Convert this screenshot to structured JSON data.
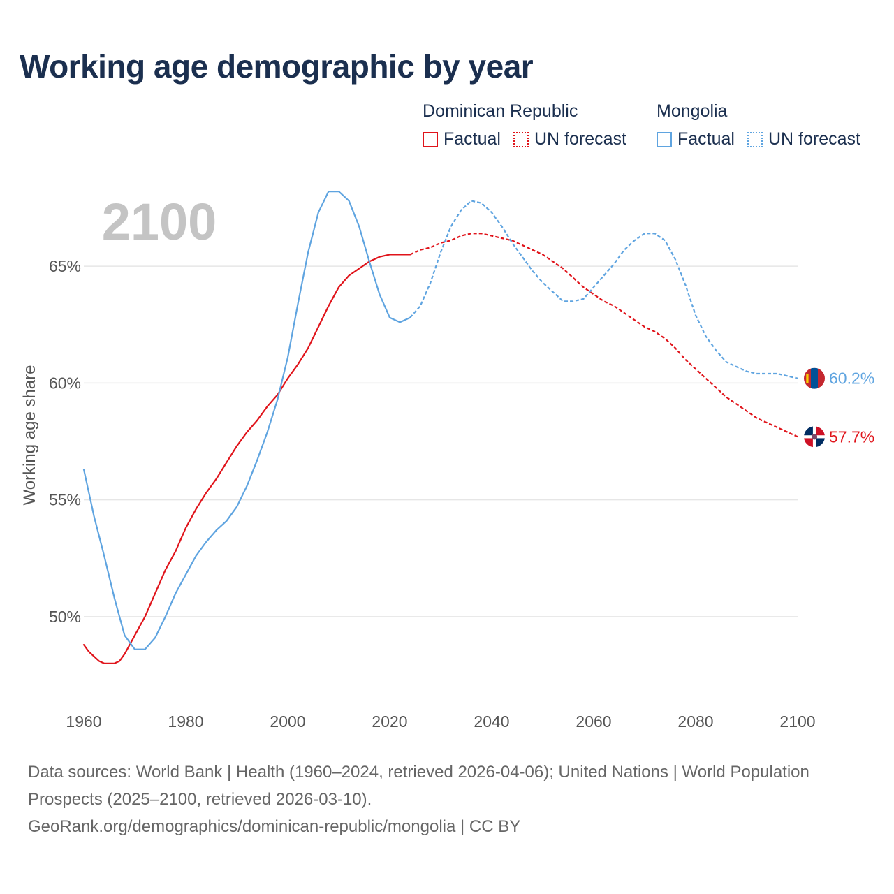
{
  "title": "Working age demographic by year",
  "legend": {
    "groups": [
      {
        "country": "Dominican Republic",
        "factual": "Factual",
        "forecast": "UN forecast",
        "color": "#e0141b"
      },
      {
        "country": "Mongolia",
        "factual": "Factual",
        "forecast": "UN forecast",
        "color": "#5fa4e0"
      }
    ]
  },
  "footer": {
    "sources": "Data sources: World Bank | Health (1960–2024, retrieved 2026-04-06); United Nations | World Population Prospects (2025–2100, retrieved 2026-03-10).",
    "link": "GeoRank.org/demographics/dominican-republic/mongolia | CC BY"
  },
  "chart_data": {
    "type": "line",
    "title": "Working age demographic by year",
    "year_label": "2100",
    "xlabel": "",
    "ylabel": "Working age share",
    "xlim": [
      1960,
      2100
    ],
    "ylim": [
      46.5,
      68.8
    ],
    "x_ticks": [
      "1960",
      "1980",
      "2000",
      "2020",
      "2040",
      "2060",
      "2080",
      "2100"
    ],
    "y_ticks": [
      {
        "value": 50,
        "label": "50%"
      },
      {
        "value": 55,
        "label": "55%"
      },
      {
        "value": 60,
        "label": "60%"
      },
      {
        "value": 65,
        "label": "65%"
      }
    ],
    "forecast_start": 2024,
    "series": [
      {
        "name": "Dominican Republic",
        "color": "#e0141b",
        "flag": "dominican-republic-flag",
        "end_label": "57.7%",
        "points": [
          [
            1960,
            48.8
          ],
          [
            1961,
            48.5
          ],
          [
            1962,
            48.3
          ],
          [
            1963,
            48.1
          ],
          [
            1964,
            48.0
          ],
          [
            1965,
            48.0
          ],
          [
            1966,
            48.0
          ],
          [
            1967,
            48.1
          ],
          [
            1968,
            48.4
          ],
          [
            1969,
            48.8
          ],
          [
            1970,
            49.2
          ],
          [
            1972,
            50.0
          ],
          [
            1974,
            51.0
          ],
          [
            1976,
            52.0
          ],
          [
            1978,
            52.8
          ],
          [
            1980,
            53.8
          ],
          [
            1982,
            54.6
          ],
          [
            1984,
            55.3
          ],
          [
            1986,
            55.9
          ],
          [
            1988,
            56.6
          ],
          [
            1990,
            57.3
          ],
          [
            1992,
            57.9
          ],
          [
            1994,
            58.4
          ],
          [
            1996,
            59.0
          ],
          [
            1998,
            59.5
          ],
          [
            2000,
            60.2
          ],
          [
            2002,
            60.8
          ],
          [
            2004,
            61.5
          ],
          [
            2006,
            62.4
          ],
          [
            2008,
            63.3
          ],
          [
            2010,
            64.1
          ],
          [
            2012,
            64.6
          ],
          [
            2014,
            64.9
          ],
          [
            2016,
            65.2
          ],
          [
            2018,
            65.4
          ],
          [
            2020,
            65.5
          ],
          [
            2022,
            65.5
          ],
          [
            2024,
            65.5
          ],
          [
            2026,
            65.7
          ],
          [
            2028,
            65.8
          ],
          [
            2030,
            66.0
          ],
          [
            2032,
            66.1
          ],
          [
            2034,
            66.3
          ],
          [
            2036,
            66.4
          ],
          [
            2038,
            66.4
          ],
          [
            2040,
            66.3
          ],
          [
            2042,
            66.2
          ],
          [
            2044,
            66.1
          ],
          [
            2046,
            65.9
          ],
          [
            2048,
            65.7
          ],
          [
            2050,
            65.5
          ],
          [
            2052,
            65.2
          ],
          [
            2054,
            64.9
          ],
          [
            2056,
            64.5
          ],
          [
            2058,
            64.1
          ],
          [
            2060,
            63.8
          ],
          [
            2062,
            63.5
          ],
          [
            2064,
            63.3
          ],
          [
            2066,
            63.0
          ],
          [
            2068,
            62.7
          ],
          [
            2070,
            62.4
          ],
          [
            2072,
            62.2
          ],
          [
            2074,
            61.9
          ],
          [
            2076,
            61.5
          ],
          [
            2078,
            61.0
          ],
          [
            2080,
            60.6
          ],
          [
            2082,
            60.2
          ],
          [
            2084,
            59.8
          ],
          [
            2086,
            59.4
          ],
          [
            2088,
            59.1
          ],
          [
            2090,
            58.8
          ],
          [
            2092,
            58.5
          ],
          [
            2094,
            58.3
          ],
          [
            2096,
            58.1
          ],
          [
            2098,
            57.9
          ],
          [
            2100,
            57.7
          ]
        ]
      },
      {
        "name": "Mongolia",
        "color": "#5fa4e0",
        "flag": "mongolia-flag",
        "end_label": "60.2%",
        "points": [
          [
            1960,
            56.3
          ],
          [
            1962,
            54.3
          ],
          [
            1964,
            52.6
          ],
          [
            1966,
            50.8
          ],
          [
            1968,
            49.2
          ],
          [
            1970,
            48.6
          ],
          [
            1972,
            48.6
          ],
          [
            1974,
            49.1
          ],
          [
            1976,
            50.0
          ],
          [
            1978,
            51.0
          ],
          [
            1980,
            51.8
          ],
          [
            1982,
            52.6
          ],
          [
            1984,
            53.2
          ],
          [
            1986,
            53.7
          ],
          [
            1988,
            54.1
          ],
          [
            1990,
            54.7
          ],
          [
            1992,
            55.6
          ],
          [
            1994,
            56.7
          ],
          [
            1996,
            57.9
          ],
          [
            1998,
            59.3
          ],
          [
            2000,
            61.1
          ],
          [
            2002,
            63.4
          ],
          [
            2004,
            65.6
          ],
          [
            2006,
            67.3
          ],
          [
            2008,
            68.2
          ],
          [
            2010,
            68.2
          ],
          [
            2012,
            67.8
          ],
          [
            2014,
            66.7
          ],
          [
            2016,
            65.2
          ],
          [
            2018,
            63.8
          ],
          [
            2020,
            62.8
          ],
          [
            2022,
            62.6
          ],
          [
            2024,
            62.8
          ],
          [
            2026,
            63.3
          ],
          [
            2028,
            64.3
          ],
          [
            2030,
            65.6
          ],
          [
            2032,
            66.7
          ],
          [
            2034,
            67.4
          ],
          [
            2036,
            67.8
          ],
          [
            2038,
            67.7
          ],
          [
            2040,
            67.3
          ],
          [
            2042,
            66.7
          ],
          [
            2044,
            66.0
          ],
          [
            2046,
            65.4
          ],
          [
            2048,
            64.8
          ],
          [
            2050,
            64.3
          ],
          [
            2052,
            63.9
          ],
          [
            2054,
            63.5
          ],
          [
            2056,
            63.5
          ],
          [
            2058,
            63.6
          ],
          [
            2060,
            64.1
          ],
          [
            2062,
            64.6
          ],
          [
            2064,
            65.1
          ],
          [
            2066,
            65.7
          ],
          [
            2068,
            66.1
          ],
          [
            2070,
            66.4
          ],
          [
            2072,
            66.4
          ],
          [
            2074,
            66.1
          ],
          [
            2076,
            65.3
          ],
          [
            2078,
            64.2
          ],
          [
            2080,
            62.9
          ],
          [
            2082,
            62.0
          ],
          [
            2084,
            61.4
          ],
          [
            2086,
            60.9
          ],
          [
            2088,
            60.7
          ],
          [
            2090,
            60.5
          ],
          [
            2092,
            60.4
          ],
          [
            2094,
            60.4
          ],
          [
            2096,
            60.4
          ],
          [
            2098,
            60.3
          ],
          [
            2100,
            60.2
          ]
        ]
      }
    ]
  }
}
